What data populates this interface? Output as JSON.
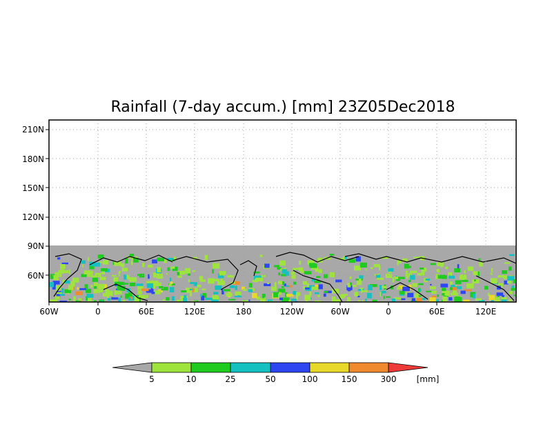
{
  "map": {
    "title": "Rainfall (7-day accum.) [mm] 23Z05Dec2018",
    "lat_ticks": [
      "210N",
      "180N",
      "150N",
      "120N",
      "90N",
      "60N"
    ],
    "lon_ticks": [
      "60W",
      "0",
      "60E",
      "120E",
      "180",
      "120W",
      "60W",
      "0",
      "60E",
      "120E"
    ],
    "colors": {
      "background": "#ffffff",
      "no_data": "#a8a8a8",
      "coast": "#000000",
      "grid": "#a0a0a0"
    }
  },
  "colorbar": {
    "unit": "[mm]",
    "tick_labels": [
      "5",
      "10",
      "25",
      "50",
      "100",
      "150",
      "300"
    ],
    "colors": [
      "#a8a8a8",
      "#9ee43c",
      "#1ecb1e",
      "#14c0c0",
      "#2d46f2",
      "#e8d82a",
      "#ef8a2e",
      "#ef3a3a"
    ]
  }
}
